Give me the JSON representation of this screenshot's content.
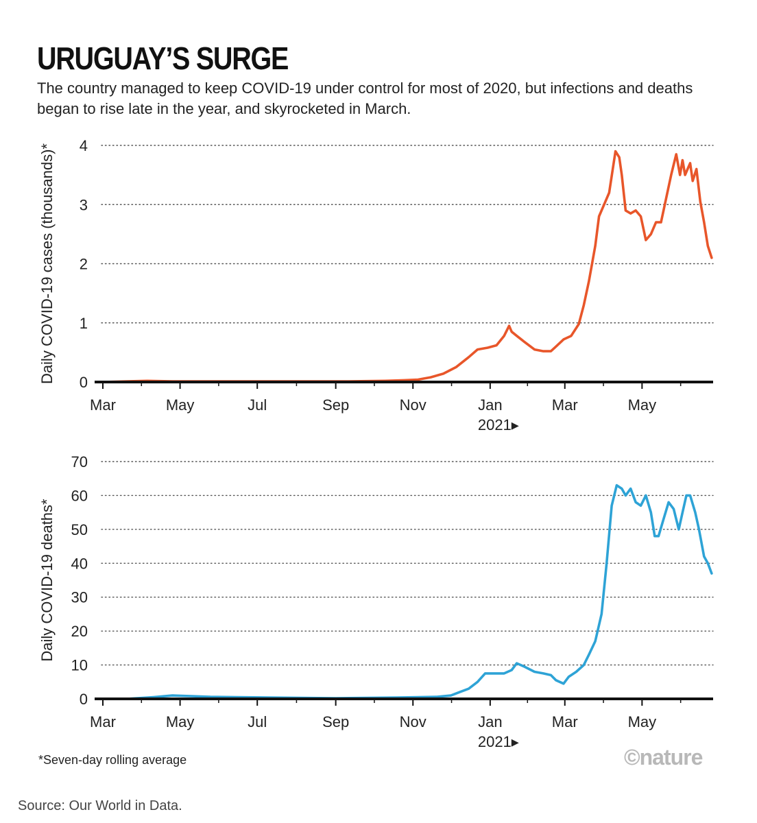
{
  "title": "URUGUAY’S SURGE",
  "subtitle": "The country managed to keep COVID-19 under control for most of 2020, but infections and deaths began to rise late in the year, and skyrocketed in March.",
  "footnote": "*Seven-day rolling average",
  "logo": "©nature",
  "source": "Source: Our World in Data.",
  "colors": {
    "cases": "#e8562a",
    "deaths": "#2ea3d6",
    "axis": "#111111",
    "grid": "#555555"
  },
  "chart_data": [
    {
      "type": "line",
      "ylabel": "Daily COVID-19 cases (thousands)*",
      "xlabel": "",
      "ylim": [
        0,
        4
      ],
      "yticks": [
        0,
        1,
        2,
        3,
        4
      ],
      "xlim": [
        "2020-03-01",
        "2021-06-25"
      ],
      "xticks": [
        {
          "label": "Mar",
          "date": "2020-03-01"
        },
        {
          "label": "May",
          "date": "2020-05-01"
        },
        {
          "label": "Jul",
          "date": "2020-07-01"
        },
        {
          "label": "Sep",
          "date": "2020-09-01"
        },
        {
          "label": "Nov",
          "date": "2020-11-01"
        },
        {
          "label": "Jan",
          "date": "2021-01-01"
        },
        {
          "label": "Mar",
          "date": "2021-03-01"
        },
        {
          "label": "May",
          "date": "2021-05-01"
        }
      ],
      "year_marker": {
        "label": "2021▸",
        "date": "2021-01-01"
      },
      "grid": "horizontal dotted",
      "series": [
        {
          "color": "#e8562a",
          "x": [
            "2020-03-01",
            "2020-03-20",
            "2020-04-05",
            "2020-04-25",
            "2020-05-20",
            "2020-06-15",
            "2020-07-10",
            "2020-08-10",
            "2020-09-10",
            "2020-10-10",
            "2020-10-25",
            "2020-11-05",
            "2020-11-15",
            "2020-11-25",
            "2020-12-05",
            "2020-12-15",
            "2020-12-22",
            "2020-12-30",
            "2021-01-06",
            "2021-01-12",
            "2021-01-16",
            "2021-01-18",
            "2021-01-22",
            "2021-01-28",
            "2021-02-05",
            "2021-02-12",
            "2021-02-18",
            "2021-02-22",
            "2021-02-28",
            "2021-03-06",
            "2021-03-12",
            "2021-03-16",
            "2021-03-20",
            "2021-03-25",
            "2021-03-28",
            "2021-04-01",
            "2021-04-05",
            "2021-04-10",
            "2021-04-13",
            "2021-04-15",
            "2021-04-18",
            "2021-04-22",
            "2021-04-26",
            "2021-04-30",
            "2021-05-04",
            "2021-05-08",
            "2021-05-12",
            "2021-05-16",
            "2021-05-20",
            "2021-05-24",
            "2021-05-28",
            "2021-05-31",
            "2021-06-02",
            "2021-06-04",
            "2021-06-06",
            "2021-06-08",
            "2021-06-10",
            "2021-06-13",
            "2021-06-16",
            "2021-06-19",
            "2021-06-22",
            "2021-06-25"
          ],
          "y": [
            0.0,
            0.01,
            0.02,
            0.01,
            0.01,
            0.01,
            0.01,
            0.01,
            0.01,
            0.02,
            0.03,
            0.04,
            0.08,
            0.14,
            0.25,
            0.42,
            0.55,
            0.58,
            0.62,
            0.78,
            0.95,
            0.85,
            0.78,
            0.68,
            0.55,
            0.52,
            0.52,
            0.6,
            0.72,
            0.78,
            0.98,
            1.3,
            1.7,
            2.3,
            2.8,
            3.0,
            3.2,
            3.9,
            3.8,
            3.5,
            2.9,
            2.85,
            2.9,
            2.8,
            2.4,
            2.5,
            2.7,
            2.7,
            3.1,
            3.5,
            3.85,
            3.5,
            3.75,
            3.5,
            3.6,
            3.7,
            3.4,
            3.6,
            3.05,
            2.7,
            2.3,
            2.1
          ]
        }
      ]
    },
    {
      "type": "line",
      "ylabel": "Daily COVID-19 deaths*",
      "xlabel": "",
      "ylim": [
        0,
        70
      ],
      "yticks": [
        0,
        10,
        20,
        30,
        40,
        50,
        60,
        70
      ],
      "xlim": [
        "2020-03-01",
        "2021-06-25"
      ],
      "xticks": [
        {
          "label": "Mar",
          "date": "2020-03-01"
        },
        {
          "label": "May",
          "date": "2020-05-01"
        },
        {
          "label": "Jul",
          "date": "2020-07-01"
        },
        {
          "label": "Sep",
          "date": "2020-09-01"
        },
        {
          "label": "Nov",
          "date": "2020-11-01"
        },
        {
          "label": "Jan",
          "date": "2021-01-01"
        },
        {
          "label": "Mar",
          "date": "2021-03-01"
        },
        {
          "label": "May",
          "date": "2021-05-01"
        }
      ],
      "year_marker": {
        "label": "2021▸",
        "date": "2021-01-01"
      },
      "grid": "horizontal dotted",
      "series": [
        {
          "color": "#2ea3d6",
          "x": [
            "2020-03-01",
            "2020-03-20",
            "2020-04-10",
            "2020-04-25",
            "2020-05-10",
            "2020-05-25",
            "2020-06-15",
            "2020-07-10",
            "2020-08-05",
            "2020-09-01",
            "2020-09-25",
            "2020-10-20",
            "2020-11-05",
            "2020-11-20",
            "2020-12-01",
            "2020-12-08",
            "2020-12-15",
            "2020-12-22",
            "2020-12-28",
            "2021-01-05",
            "2021-01-12",
            "2021-01-18",
            "2021-01-22",
            "2021-01-28",
            "2021-02-05",
            "2021-02-12",
            "2021-02-18",
            "2021-02-22",
            "2021-02-28",
            "2021-03-04",
            "2021-03-10",
            "2021-03-16",
            "2021-03-20",
            "2021-03-25",
            "2021-03-30",
            "2021-04-03",
            "2021-04-07",
            "2021-04-11",
            "2021-04-15",
            "2021-04-18",
            "2021-04-22",
            "2021-04-26",
            "2021-04-30",
            "2021-05-04",
            "2021-05-08",
            "2021-05-11",
            "2021-05-14",
            "2021-05-18",
            "2021-05-22",
            "2021-05-26",
            "2021-05-30",
            "2021-06-02",
            "2021-06-05",
            "2021-06-08",
            "2021-06-12",
            "2021-06-15",
            "2021-06-19",
            "2021-06-22",
            "2021-06-25"
          ],
          "y": [
            0,
            0,
            0.5,
            1,
            0.8,
            0.6,
            0.5,
            0.4,
            0.3,
            0.2,
            0.3,
            0.4,
            0.5,
            0.6,
            1.0,
            2.0,
            3.0,
            5.0,
            7.5,
            7.5,
            7.5,
            8.5,
            10.5,
            9.5,
            8.0,
            7.5,
            7.0,
            5.5,
            4.5,
            6.5,
            8.0,
            10.0,
            13.0,
            17.0,
            25.0,
            40.0,
            57.0,
            63.0,
            62.0,
            60.0,
            62.0,
            58.0,
            57.0,
            60.0,
            55.0,
            48.0,
            48.0,
            53.0,
            58.0,
            56.0,
            50.0,
            55.0,
            60.0,
            60.0,
            55.0,
            50.0,
            42.0,
            40.0,
            37.0
          ]
        }
      ]
    }
  ]
}
